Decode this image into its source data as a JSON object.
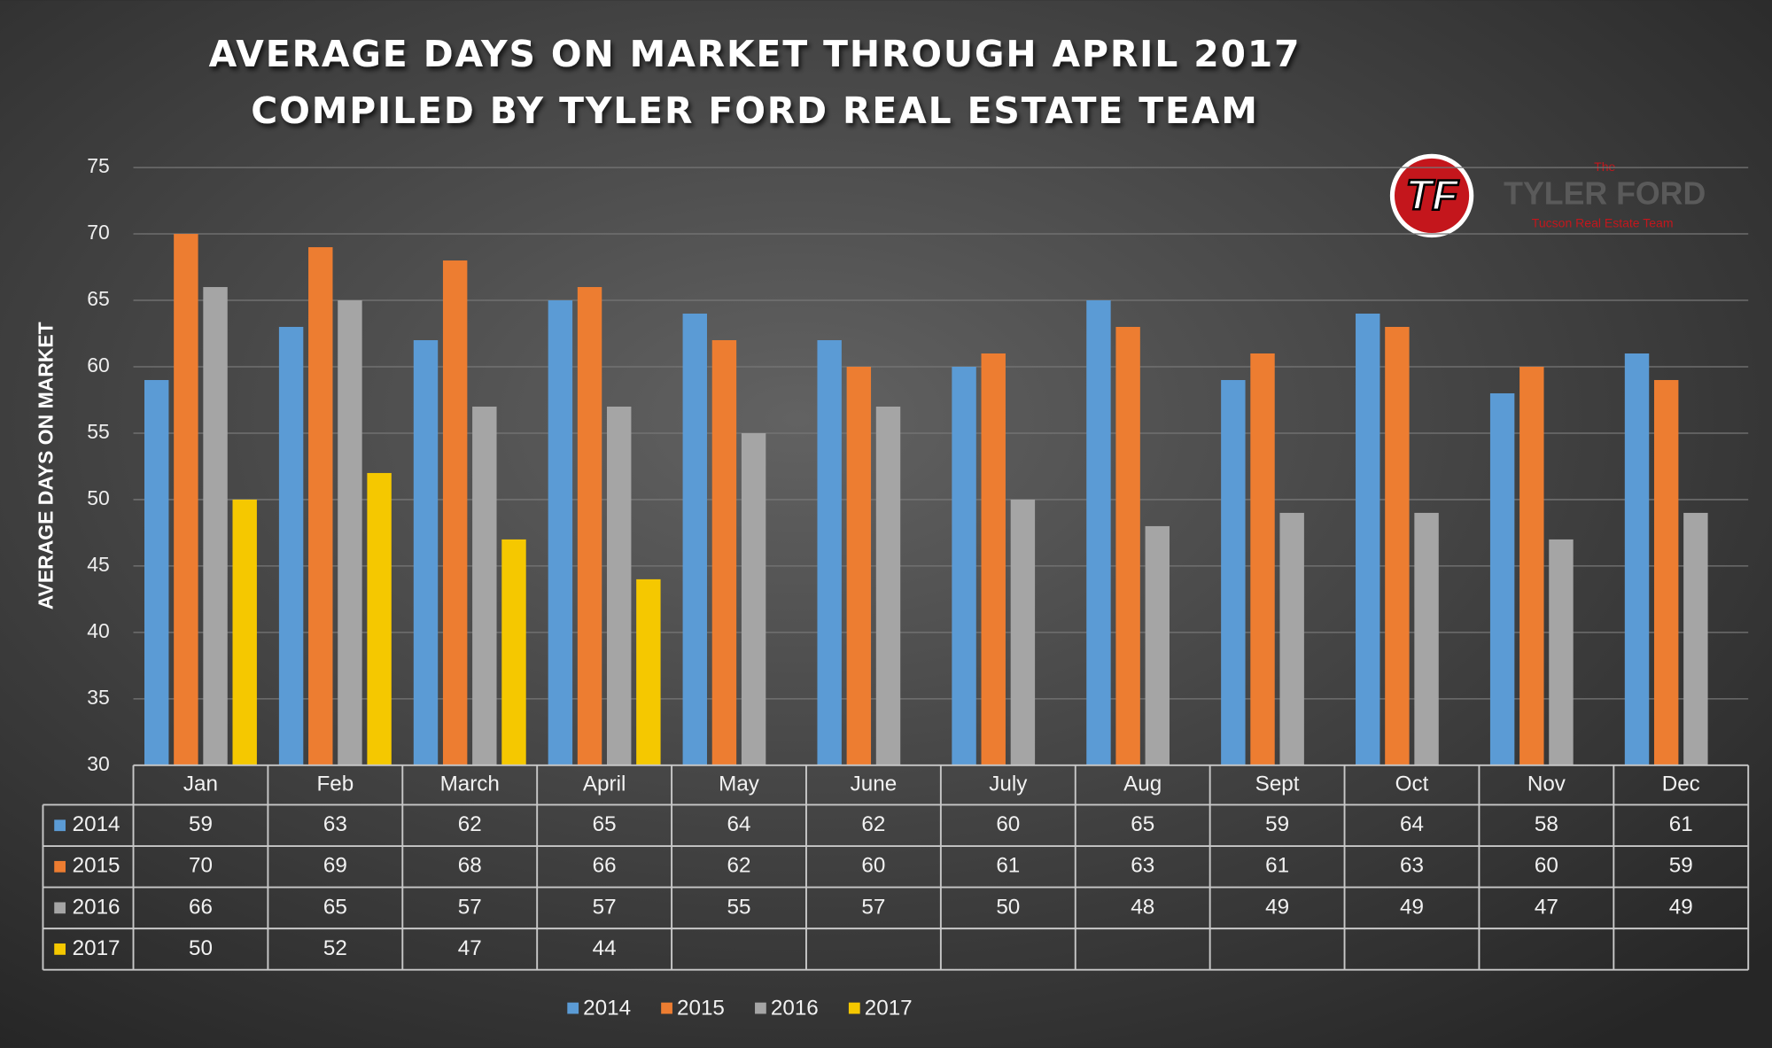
{
  "chart_data": {
    "type": "bar",
    "title": "AVERAGE DAYS ON MARKET THROUGH APRIL 2017",
    "subtitle": "COMPILED BY TYLER FORD REAL ESTATE TEAM",
    "y_label": "AVERAGE DAYS ON MARKET",
    "categories": [
      "Jan",
      "Feb",
      "March",
      "April",
      "May",
      "June",
      "July",
      "Aug",
      "Sept",
      "Oct",
      "Nov",
      "Dec"
    ],
    "series": [
      {
        "name": "2014",
        "color": "#5b9bd5",
        "values": [
          59,
          63,
          62,
          65,
          64,
          62,
          60,
          65,
          59,
          64,
          58,
          61
        ]
      },
      {
        "name": "2015",
        "color": "#ed7d31",
        "values": [
          70,
          69,
          68,
          66,
          62,
          60,
          61,
          63,
          61,
          63,
          60,
          59
        ]
      },
      {
        "name": "2016",
        "color": "#a5a5a5",
        "values": [
          66,
          65,
          57,
          57,
          55,
          57,
          50,
          48,
          49,
          49,
          47,
          49
        ]
      },
      {
        "name": "2017",
        "color": "#f5c800",
        "values": [
          50,
          52,
          47,
          44,
          null,
          null,
          null,
          null,
          null,
          null,
          null,
          null
        ]
      }
    ],
    "ylim": [
      30,
      75
    ],
    "yticks": [
      30,
      35,
      40,
      45,
      50,
      55,
      60,
      65,
      70,
      75
    ],
    "grid": true
  },
  "logo": {
    "mark": "TF",
    "small": "The",
    "name": "TYLER FORD",
    "tagline": "Tucson Real Estate Team"
  }
}
